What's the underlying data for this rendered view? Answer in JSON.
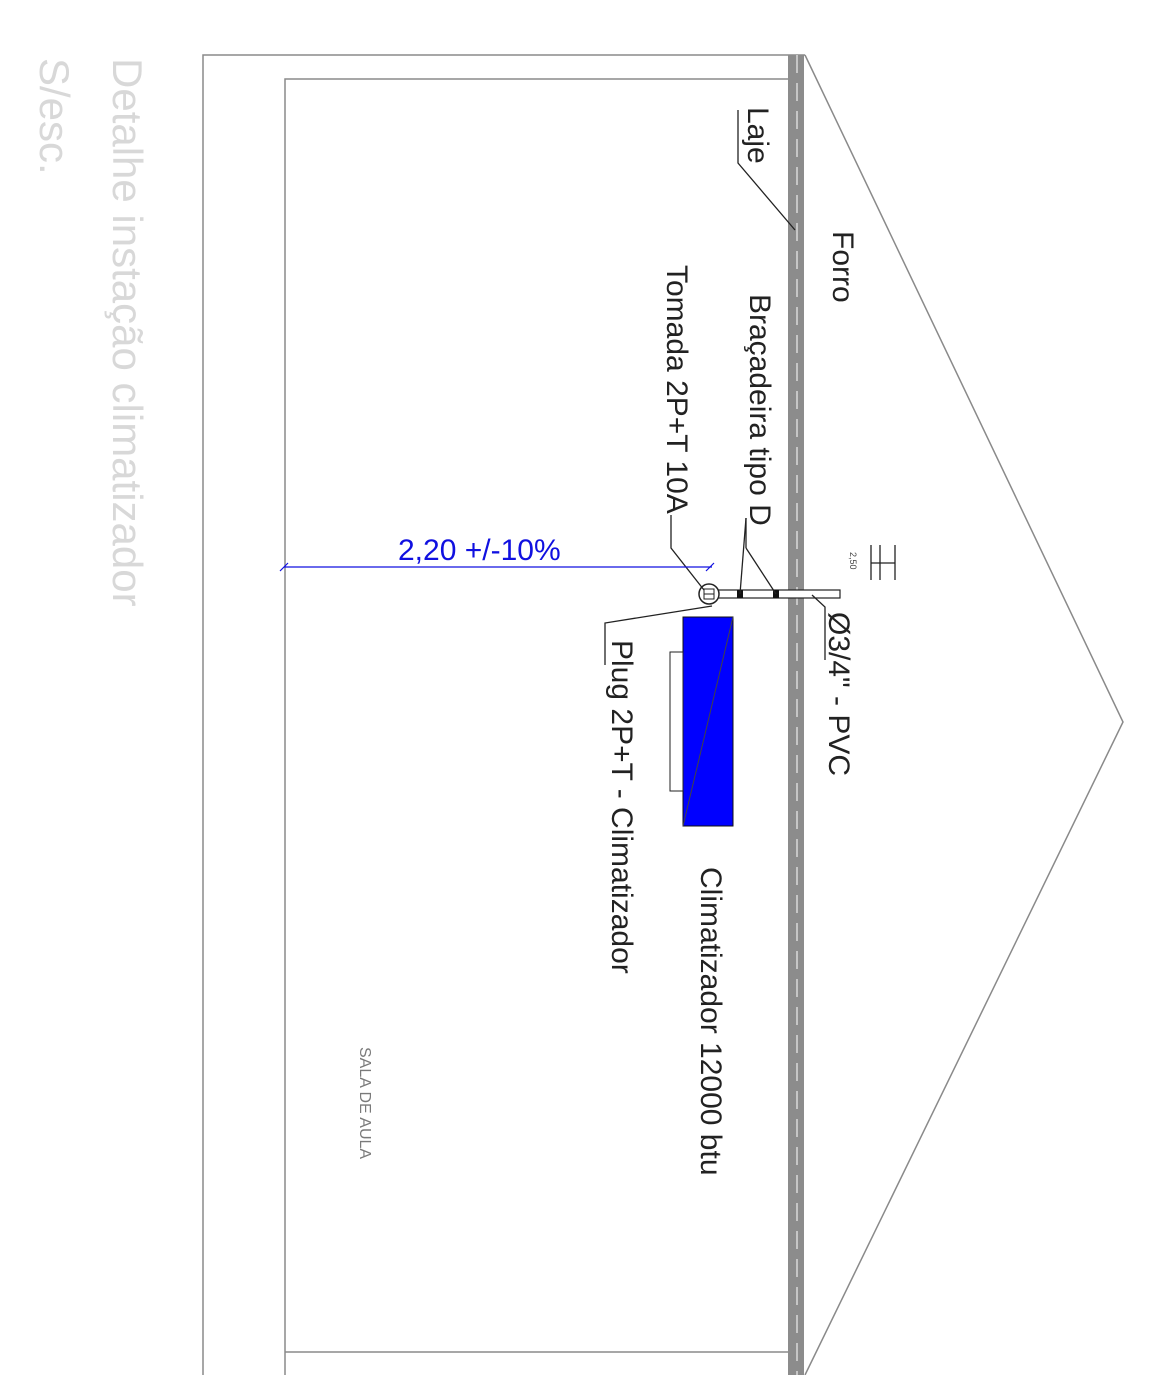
{
  "title": {
    "line1": "Detalhe instação climatizador",
    "line2": "S/esc."
  },
  "labels": {
    "laje": "Laje",
    "forro": "Forro",
    "bracadeira": "Braçadeira tipo D",
    "tomada": "Tomada 2P+T 10A",
    "conduit": "Ø3/4\" - PVC",
    "plug": "Plug 2P+T - Climatizador",
    "climatizador": "Climatizador 12000 btu",
    "room": "SALA DE AULA",
    "dimension": "2,20 +/-10%",
    "level_mark": "2,50"
  },
  "colors": {
    "unit_fill": "#0000ff",
    "dimension": "#1010e0",
    "slab": "#8c8c8c"
  }
}
